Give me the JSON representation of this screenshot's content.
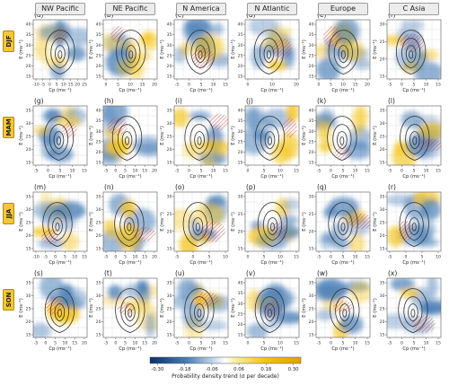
{
  "regions": [
    "NW Pacific",
    "NE Pacific",
    "N America",
    "N Atlantic",
    "Europe",
    "C Asia"
  ],
  "seasons": [
    "DJF",
    "MAM",
    "JJA",
    "SON"
  ],
  "panel_labels": [
    [
      "(a)",
      "(b)",
      "(c)",
      "(d)",
      "(e)",
      "(f)"
    ],
    [
      "(g)",
      "(h)",
      "(i)",
      "(j)",
      "(k)",
      "(l)"
    ],
    [
      "(m)",
      "(n)",
      "(o)",
      "(p)",
      "(q)",
      "(r)"
    ],
    [
      "(s)",
      "(t)",
      "(u)",
      "(v)",
      "(w)",
      "(x)"
    ]
  ],
  "colors": {
    "negative": "#4a7fb8",
    "positive": "#f5c518",
    "hatch": "#d43030",
    "contour": "#333333",
    "grid": "#e0e0e0"
  },
  "chart_data": {
    "type": "heatmap",
    "description": "4x6 grid of probability density trend maps with climatological contours",
    "xlabel": "Cp (ms⁻¹)",
    "ylabel": "E (ms⁻¹)",
    "panels": [
      {
        "id": "a",
        "xticks": [
          "-10",
          "-5",
          "0",
          "5",
          "10",
          "15",
          "20",
          "25"
        ],
        "yticks": [
          "15",
          "20",
          "25",
          "30",
          "35",
          "40"
        ]
      },
      {
        "id": "b",
        "xticks": [
          "0",
          "5",
          "10",
          "15",
          "20"
        ],
        "yticks": [
          "15",
          "20",
          "25",
          "30",
          "35",
          "40"
        ]
      },
      {
        "id": "c",
        "xticks": [
          "-5",
          "0",
          "5",
          "10",
          "15"
        ],
        "yticks": [
          "15",
          "20",
          "25",
          "30",
          "35",
          "40"
        ]
      },
      {
        "id": "d",
        "xticks": [
          "0",
          "10",
          "20"
        ],
        "yticks": [
          "15",
          "20",
          "25",
          "30",
          "35",
          "40"
        ]
      },
      {
        "id": "e",
        "xticks": [
          "0",
          "5",
          "10",
          "15",
          "20"
        ],
        "yticks": [
          "15",
          "20",
          "25",
          "30",
          "35",
          "40"
        ]
      },
      {
        "id": "f",
        "xticks": [
          "-5",
          "0",
          "5",
          "10",
          "15"
        ],
        "yticks": [
          "15",
          "20",
          "25",
          "30"
        ]
      },
      {
        "id": "g",
        "xticks": [
          "-5",
          "0",
          "5",
          "10",
          "15"
        ],
        "yticks": [
          "15",
          "20",
          "25",
          "30",
          "35"
        ]
      },
      {
        "id": "h",
        "xticks": [
          "-5",
          "0",
          "5",
          "10",
          "15",
          "20"
        ],
        "yticks": [
          "15",
          "20",
          "25",
          "30",
          "35",
          "40"
        ]
      },
      {
        "id": "i",
        "xticks": [
          "-5",
          "0",
          "5",
          "10",
          "15"
        ],
        "yticks": [
          "15",
          "20",
          "25",
          "30",
          "35"
        ]
      },
      {
        "id": "j",
        "xticks": [
          "0",
          "5",
          "10",
          "15"
        ],
        "yticks": [
          "15",
          "20",
          "25",
          "30",
          "35",
          "40"
        ]
      },
      {
        "id": "k",
        "xticks": [
          "-5",
          "0",
          "5",
          "10",
          "15"
        ],
        "yticks": [
          "15",
          "20",
          "25",
          "30",
          "35",
          "40"
        ]
      },
      {
        "id": "l",
        "xticks": [
          "-5",
          "0",
          "5",
          "10",
          "15"
        ],
        "yticks": [
          "15",
          "20",
          "25",
          "30",
          "35"
        ]
      },
      {
        "id": "m",
        "xticks": [
          "-10",
          "-5",
          "0",
          "5",
          "10",
          "15"
        ],
        "yticks": [
          "15",
          "20",
          "25",
          "30",
          "35"
        ]
      },
      {
        "id": "n",
        "xticks": [
          "-5",
          "0",
          "5",
          "10",
          "15",
          "20"
        ],
        "yticks": [
          "15",
          "20",
          "25",
          "30",
          "35"
        ]
      },
      {
        "id": "o",
        "xticks": [
          "-5",
          "0",
          "5",
          "10"
        ],
        "yticks": [
          "15",
          "20",
          "25",
          "30"
        ]
      },
      {
        "id": "p",
        "xticks": [
          "0",
          "5",
          "10",
          "15"
        ],
        "yticks": [
          "15",
          "20",
          "25",
          "30"
        ]
      },
      {
        "id": "q",
        "xticks": [
          "-5",
          "0",
          "5",
          "10",
          "15"
        ],
        "yticks": [
          "15",
          "20",
          "25",
          "30"
        ]
      },
      {
        "id": "r",
        "xticks": [
          "-5",
          "0",
          "5",
          "10"
        ],
        "yticks": [
          "15",
          "20",
          "25",
          "30",
          "35"
        ]
      },
      {
        "id": "s",
        "xticks": [
          "-5",
          "0",
          "5",
          "10",
          "15",
          "20"
        ],
        "yticks": [
          "15",
          "20",
          "25",
          "30",
          "35"
        ]
      },
      {
        "id": "t",
        "xticks": [
          "-5",
          "0",
          "5",
          "10",
          "15",
          "20"
        ],
        "yticks": [
          "15",
          "20",
          "25",
          "30",
          "35"
        ]
      },
      {
        "id": "u",
        "xticks": [
          "-5",
          "0",
          "5",
          "10",
          "15"
        ],
        "yticks": [
          "15",
          "20",
          "25",
          "30",
          "35"
        ]
      },
      {
        "id": "v",
        "xticks": [
          "0",
          "5",
          "10",
          "15"
        ],
        "yticks": [
          "15",
          "20",
          "25",
          "30",
          "35",
          "40"
        ]
      },
      {
        "id": "w",
        "xticks": [
          "-5",
          "0",
          "5",
          "10",
          "15"
        ],
        "yticks": [
          "15",
          "20",
          "25",
          "30",
          "35"
        ]
      },
      {
        "id": "x",
        "xticks": [
          "-5",
          "0",
          "5",
          "10",
          "15"
        ],
        "yticks": [
          "15",
          "20",
          "25",
          "30",
          "35"
        ]
      }
    ],
    "colorbar": {
      "label": "Probability density trend (σ per decade)",
      "ticks": [
        "-0.30",
        "-0.18",
        "-0.06",
        "0.06",
        "0.18",
        "0.30"
      ],
      "range": [
        -0.3,
        0.3
      ]
    }
  }
}
